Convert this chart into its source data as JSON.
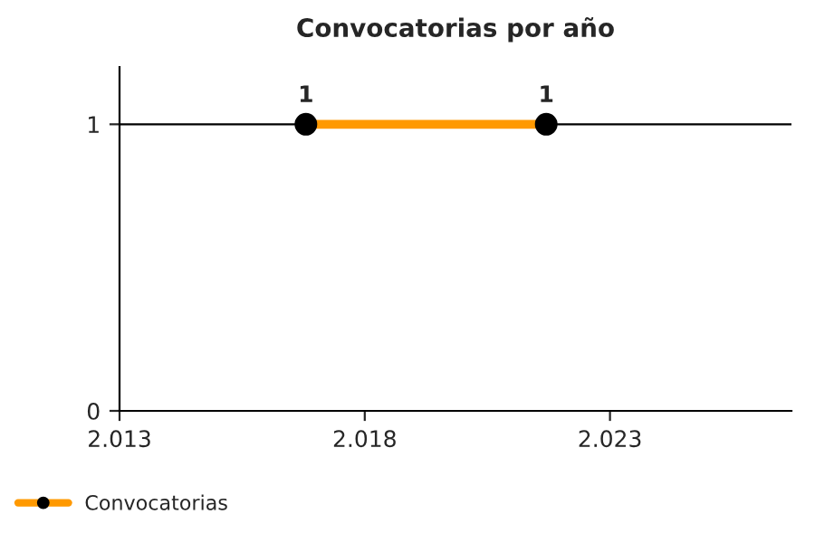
{
  "chart_data": {
    "type": "line",
    "title": "Convocatorias por año",
    "x": [
      2016.8,
      2021.7
    ],
    "series": [
      {
        "name": "Convocatorias",
        "color": "#ff9900",
        "values": [
          1,
          1
        ]
      }
    ],
    "xlim": [
      2013,
      2026.7
    ],
    "xticks": [
      {
        "value": 2013,
        "label": "2.013"
      },
      {
        "value": 2018,
        "label": "2.018"
      },
      {
        "value": 2023,
        "label": "2.023"
      }
    ],
    "ylim": [
      0,
      1.2
    ],
    "yticks": [
      0,
      1
    ],
    "grid": "y",
    "legend": "bottom left",
    "marker": "circle",
    "line_style": "solid",
    "data_labels": true
  }
}
